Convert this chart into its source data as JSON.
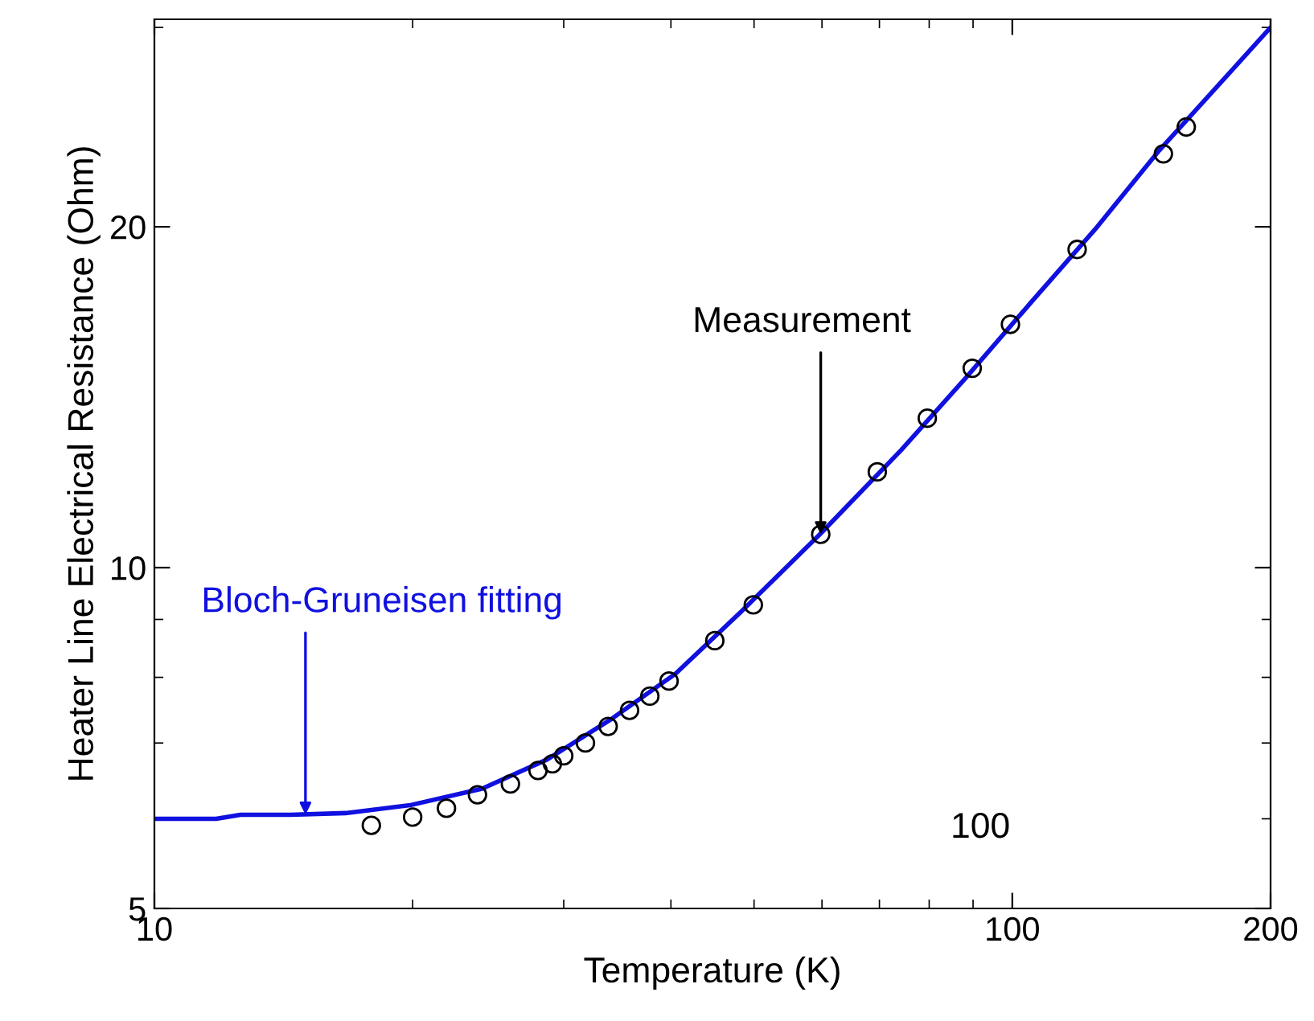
{
  "chart_data": {
    "type": "line",
    "xlabel": "Temperature (K)",
    "ylabel": "Heater Line Electrical Resistance (Ohm)",
    "log": "xy",
    "xlim": [
      10,
      200
    ],
    "ylim": [
      5,
      30.5
    ],
    "xticks": [
      10,
      100,
      200
    ],
    "yticks": [
      5,
      10,
      20
    ],
    "grid": false,
    "series": [
      {
        "color": "#1010e0",
        "marker": "none",
        "line_style": "solid",
        "x": [
          10,
          11.8,
          12.6,
          14.4,
          16.7,
          19.9,
          24.1,
          28.7,
          34.1,
          40.5,
          48.2,
          59.8,
          74.2,
          88.2,
          104.8,
          124.9,
          147.9,
          200
        ],
        "values": [
          6.0,
          6.0,
          6.05,
          6.05,
          6.07,
          6.17,
          6.38,
          6.77,
          7.35,
          8.06,
          9.13,
          10.72,
          12.7,
          14.7,
          17.1,
          19.9,
          23.3,
          30.0
        ]
      },
      {
        "type": "scatter",
        "color": "#000000",
        "marker": "circle",
        "x": [
          17.9,
          20.0,
          21.9,
          23.8,
          26.0,
          28.0,
          29.1,
          30.0,
          31.8,
          33.8,
          35.8,
          37.8,
          39.8,
          45.0,
          49.9,
          59.8,
          69.6,
          79.6,
          89.8,
          99.5,
          119,
          150,
          159.5
        ],
        "values": [
          5.92,
          6.02,
          6.13,
          6.3,
          6.44,
          6.62,
          6.71,
          6.82,
          7.0,
          7.24,
          7.48,
          7.7,
          7.94,
          8.62,
          9.27,
          10.7,
          12.15,
          13.55,
          15.0,
          16.4,
          19.1,
          23.2,
          24.5
        ]
      }
    ],
    "annotations": [
      {
        "text": "Measurement",
        "x": 59.8,
        "y": 10.7
      },
      {
        "text": "Bloch-Gruneisen fitting",
        "x": 15,
        "y": 6.05
      },
      "100"
    ]
  }
}
